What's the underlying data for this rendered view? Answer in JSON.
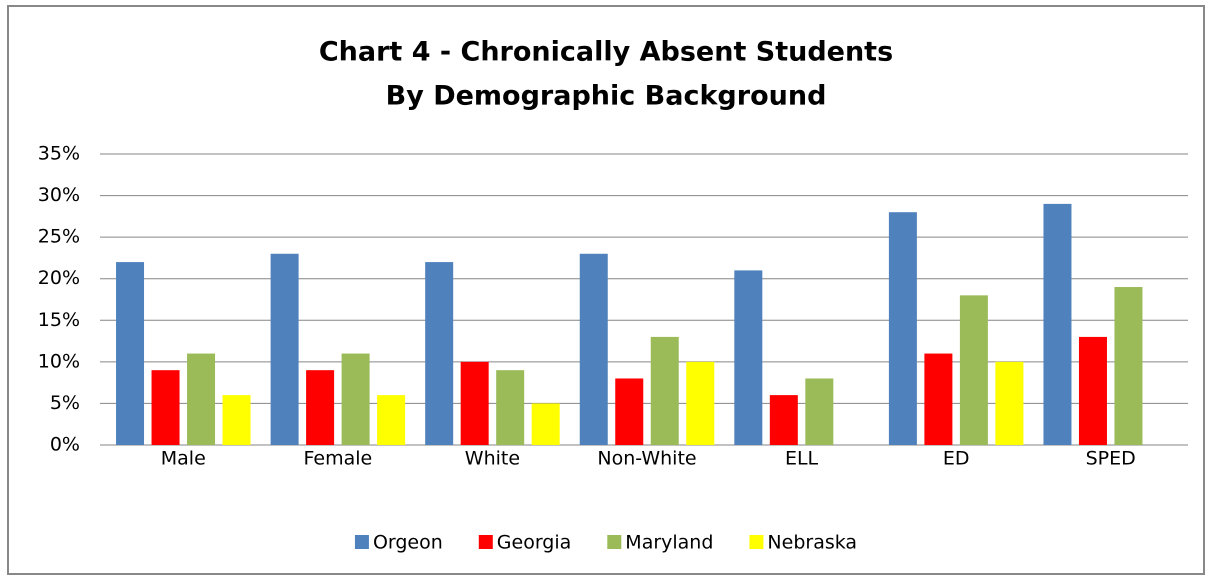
{
  "chart_data": {
    "type": "bar",
    "title": [
      "Chart 4 - Chronically Absent Students",
      "By Demographic Background"
    ],
    "categories": [
      "Male",
      "Female",
      "White",
      "Non-White",
      "ELL",
      "ED",
      "SPED"
    ],
    "series": [
      {
        "name": "Orgeon",
        "color": "#4f81bd",
        "values": [
          22,
          23,
          22,
          23,
          21,
          28,
          29
        ]
      },
      {
        "name": "Georgia",
        "color": "#ff0000",
        "values": [
          9,
          9,
          10,
          8,
          6,
          11,
          13
        ]
      },
      {
        "name": "Maryland",
        "color": "#9bbb59",
        "values": [
          11,
          11,
          9,
          13,
          8,
          18,
          19
        ]
      },
      {
        "name": "Nebraska",
        "color": "#ffff00",
        "values": [
          6,
          6,
          5,
          10,
          null,
          10,
          null
        ]
      }
    ],
    "ylim": [
      0,
      35
    ],
    "yticks": [
      {
        "value": 0,
        "label": "0%"
      },
      {
        "value": 5,
        "label": "5%"
      },
      {
        "value": 10,
        "label": "10%"
      },
      {
        "value": 15,
        "label": "15%"
      },
      {
        "value": 20,
        "label": "20%"
      },
      {
        "value": 25,
        "label": "25%"
      },
      {
        "value": 30,
        "label": "30%"
      },
      {
        "value": 35,
        "label": "35%"
      }
    ],
    "grid": true,
    "legend": "bottom"
  }
}
